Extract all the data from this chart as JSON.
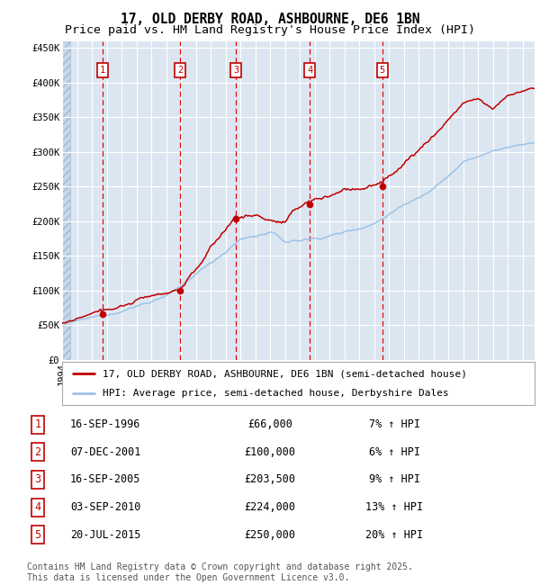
{
  "title": "17, OLD DERBY ROAD, ASHBOURNE, DE6 1BN",
  "subtitle": "Price paid vs. HM Land Registry's House Price Index (HPI)",
  "ylabel_ticks": [
    "£0",
    "£50K",
    "£100K",
    "£150K",
    "£200K",
    "£250K",
    "£300K",
    "£350K",
    "£400K",
    "£450K"
  ],
  "ytick_values": [
    0,
    50000,
    100000,
    150000,
    200000,
    250000,
    300000,
    350000,
    400000,
    450000
  ],
  "ylim": [
    0,
    460000
  ],
  "xlim_start": 1994.0,
  "xlim_end": 2025.8,
  "background_color": "#dce6f1",
  "grid_color": "#ffffff",
  "red_line_color": "#c00000",
  "blue_line_color": "#9dc3e6",
  "purchase_marker_color": "#c00000",
  "dashed_vline_color": "#cc0000",
  "legend_text1": "17, OLD DERBY ROAD, ASHBOURNE, DE6 1BN (semi-detached house)",
  "legend_text2": "HPI: Average price, semi-detached house, Derbyshire Dales",
  "table_entries": [
    {
      "num": 1,
      "date": "16-SEP-1996",
      "price": "£66,000",
      "hpi": "7% ↑ HPI"
    },
    {
      "num": 2,
      "date": "07-DEC-2001",
      "price": "£100,000",
      "hpi": "6% ↑ HPI"
    },
    {
      "num": 3,
      "date": "16-SEP-2005",
      "price": "£203,500",
      "hpi": "9% ↑ HPI"
    },
    {
      "num": 4,
      "date": "03-SEP-2010",
      "price": "£224,000",
      "hpi": "13% ↑ HPI"
    },
    {
      "num": 5,
      "date": "20-JUL-2015",
      "price": "£250,000",
      "hpi": "20% ↑ HPI"
    }
  ],
  "purchase_dates_x": [
    1996.71,
    2001.93,
    2005.71,
    2010.67,
    2015.55
  ],
  "purchase_prices_y": [
    66000,
    100000,
    203500,
    224000,
    250000
  ],
  "vline_dates": [
    1996.71,
    2001.93,
    2005.71,
    2010.67,
    2015.55
  ],
  "footer_text": "Contains HM Land Registry data © Crown copyright and database right 2025.\nThis data is licensed under the Open Government Licence v3.0.",
  "title_fontsize": 10.5,
  "subtitle_fontsize": 9.5,
  "tick_fontsize": 7.5,
  "legend_fontsize": 8,
  "table_fontsize": 8.5,
  "footer_fontsize": 7
}
